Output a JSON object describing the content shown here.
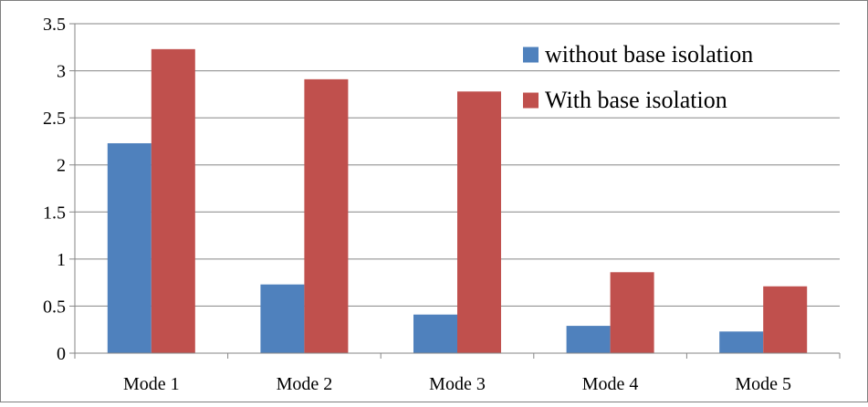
{
  "chart_data": {
    "type": "bar",
    "categories": [
      "Mode 1",
      "Mode 2",
      "Mode 3",
      "Mode 4",
      "Mode 5"
    ],
    "series": [
      {
        "name": "without base isolation",
        "values": [
          2.23,
          0.73,
          0.41,
          0.29,
          0.23
        ],
        "color": "#4F81BD"
      },
      {
        "name": "With base isolation",
        "values": [
          3.23,
          2.91,
          2.78,
          0.86,
          0.71
        ],
        "color": "#C0504D"
      }
    ],
    "yticks": [
      "0",
      "0.5",
      "1",
      "1.5",
      "2",
      "2.5",
      "3",
      "3.5"
    ],
    "ylim": [
      0,
      3.5
    ],
    "grid": true,
    "legend_position": "top-right"
  }
}
